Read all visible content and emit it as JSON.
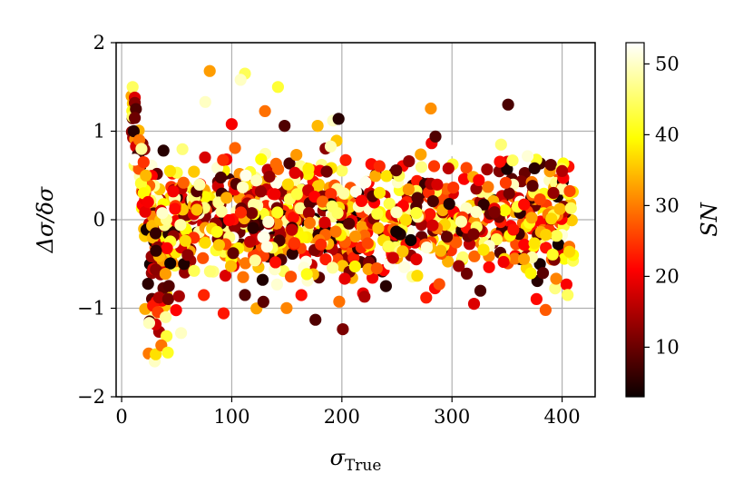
{
  "chart_data": {
    "type": "scatter",
    "title": "",
    "xlabel": "σ",
    "xlabel_sub": "True",
    "ylabel": "Δσ/δσ",
    "xlim": [
      -5,
      430
    ],
    "ylim": [
      -2,
      2
    ],
    "xticks": [
      0,
      100,
      200,
      300,
      400
    ],
    "yticks": [
      -2,
      -1,
      0,
      1,
      2
    ],
    "xtick_labels": [
      "0",
      "100",
      "200",
      "300",
      "400"
    ],
    "ytick_labels": [
      "−2",
      "−1",
      "0",
      "1",
      "2"
    ],
    "grid": true,
    "colormap": "hot",
    "colorbar": {
      "label": "SN",
      "range": [
        3,
        53
      ],
      "ticks": [
        10,
        20,
        30,
        40,
        50
      ],
      "tick_labels": [
        "10",
        "20",
        "30",
        "40",
        "50"
      ]
    },
    "point_count": 1200,
    "points": [
      {
        "x": 10,
        "y": 1.5,
        "c": 45
      },
      {
        "x": 12,
        "y": 1.38,
        "c": 18
      },
      {
        "x": 12,
        "y": 1.32,
        "c": 12
      },
      {
        "x": 13,
        "y": 1.25,
        "c": 8
      },
      {
        "x": 12,
        "y": 1.15,
        "c": 10
      },
      {
        "x": 11,
        "y": 1.0,
        "c": 5
      },
      {
        "x": 16,
        "y": 0.9,
        "c": 30
      },
      {
        "x": 18,
        "y": 0.8,
        "c": 48
      },
      {
        "x": 20,
        "y": 0.65,
        "c": 25
      },
      {
        "x": 22,
        "y": 0.5,
        "c": 35
      },
      {
        "x": 20,
        "y": 0.3,
        "c": 40
      },
      {
        "x": 24,
        "y": 0.2,
        "c": 20
      },
      {
        "x": 38,
        "y": 0.78,
        "c": 5
      },
      {
        "x": 44,
        "y": 0.55,
        "c": 38
      },
      {
        "x": 80,
        "y": 1.68,
        "c": 33
      },
      {
        "x": 76,
        "y": 1.33,
        "c": 50
      },
      {
        "x": 108,
        "y": 1.58,
        "c": 50
      },
      {
        "x": 142,
        "y": 1.5,
        "c": 43
      },
      {
        "x": 100,
        "y": 1.08,
        "c": 20
      },
      {
        "x": 148,
        "y": 1.06,
        "c": 8
      },
      {
        "x": 178,
        "y": 1.06,
        "c": 35
      },
      {
        "x": 192,
        "y": 1.12,
        "c": 50
      },
      {
        "x": 197,
        "y": 1.14,
        "c": 5
      },
      {
        "x": 285,
        "y": 0.94,
        "c": 8
      },
      {
        "x": 30,
        "y": -1.6,
        "c": 50
      },
      {
        "x": 31,
        "y": -1.52,
        "c": 38
      },
      {
        "x": 36,
        "y": -1.42,
        "c": 30
      },
      {
        "x": 42,
        "y": -1.5,
        "c": 42
      },
      {
        "x": 40,
        "y": -1.1,
        "c": 48
      },
      {
        "x": 54,
        "y": -1.28,
        "c": 50
      },
      {
        "x": 176,
        "y": -1.13,
        "c": 8
      },
      {
        "x": 112,
        "y": -0.85,
        "c": 8
      },
      {
        "x": 240,
        "y": -0.75,
        "c": 5
      },
      {
        "x": 385,
        "y": -1.02,
        "c": 28
      },
      {
        "x": 320,
        "y": -0.95,
        "c": 18
      },
      {
        "x": 355,
        "y": 0.67,
        "c": 45
      },
      {
        "x": 375,
        "y": 0.58,
        "c": 5
      },
      {
        "x": 400,
        "y": 0.55,
        "c": 15
      },
      {
        "x": 408,
        "y": 0.13,
        "c": 45
      },
      {
        "x": 405,
        "y": -0.85,
        "c": 45
      }
    ]
  }
}
